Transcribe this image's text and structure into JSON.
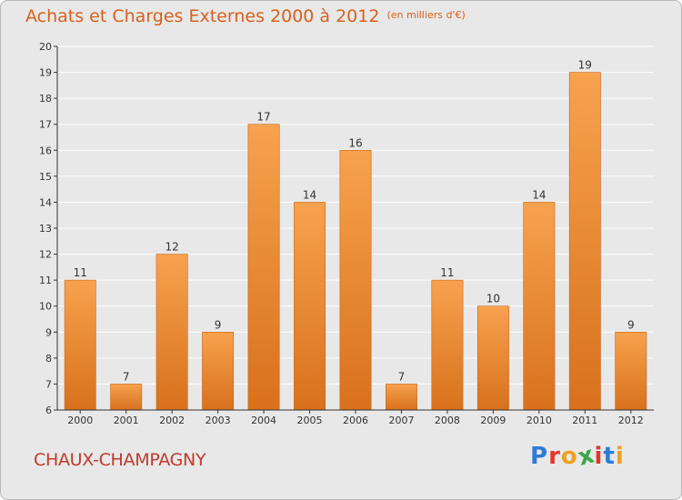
{
  "title": "Achats et Charges Externes 2000 à 2012",
  "subtitle": "(en milliers d'€)",
  "commune": "CHAUX-CHAMPAGNY",
  "logo": "Proxiti",
  "logo_letters": [
    {
      "ch": "P",
      "color": "#2e7bd6"
    },
    {
      "ch": "r",
      "color": "#e0382b"
    },
    {
      "ch": "o",
      "color": "#f0a020"
    },
    {
      "ch": "x",
      "color": "#3aa64a"
    },
    {
      "ch": "i",
      "color": "#e0382b"
    },
    {
      "ch": "t",
      "color": "#2e7bd6"
    },
    {
      "ch": "i",
      "color": "#f0a020"
    }
  ],
  "colors": {
    "bar_top": "#f7a24f",
    "bar_bottom": "#d8711c",
    "bar_edge": "#c96515",
    "axis": "#333333",
    "grid": "#ffffff",
    "title": "#d9601a"
  },
  "chart_data": {
    "type": "bar",
    "categories": [
      "2000",
      "2001",
      "2002",
      "2003",
      "2004",
      "2005",
      "2006",
      "2007",
      "2008",
      "2009",
      "2010",
      "2011",
      "2012"
    ],
    "values": [
      11,
      7,
      12,
      9,
      17,
      14,
      16,
      7,
      11,
      10,
      14,
      19,
      9
    ],
    "ylim": [
      6,
      20
    ],
    "yticks": [
      6,
      7,
      8,
      9,
      10,
      11,
      12,
      13,
      14,
      15,
      16,
      17,
      18,
      19,
      20
    ],
    "grid": true,
    "data_labels": true
  }
}
